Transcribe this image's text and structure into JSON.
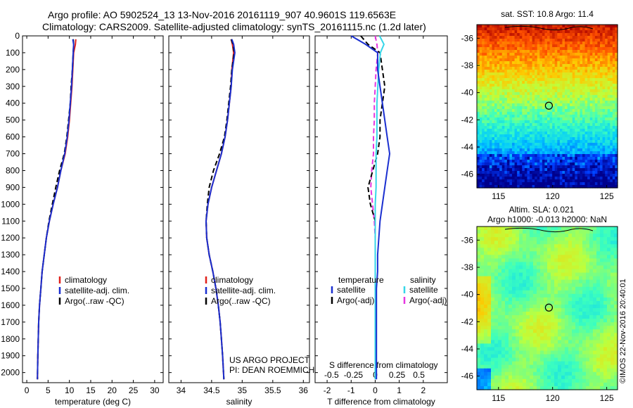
{
  "header": {
    "title_line1": "Argo profile: AO 5902524_13 13-Nov-2016 20161119_907 40.9601S 119.6563E",
    "title_line2": "Climatology: CARS2009. Satellite-adjusted climatology: synTS_20161115.nc (1.2d later)"
  },
  "footer": {
    "project": "US ARGO PROJECT",
    "pi": "PI: DEAN ROEMMICH",
    "imos_stamp": "©IMOS 22-Nov-2016 20:40:01"
  },
  "colors": {
    "climatology": "#e0201b",
    "satellite": "#1a2fd0",
    "argo": "#000000",
    "satellite_salinity": "#35d6e8",
    "argo_salinity_adj": "#e636e0"
  },
  "chart_data": [
    {
      "type": "line",
      "panel": "temperature",
      "xlabel": "temperature (deg C)",
      "xlim": [
        -1,
        32
      ],
      "ylim": [
        2060,
        0
      ],
      "xticks": [
        "0",
        "5",
        "10",
        "15",
        "20",
        "25",
        "30"
      ],
      "yticks": [
        "0",
        "100",
        "200",
        "300",
        "400",
        "500",
        "600",
        "700",
        "800",
        "900",
        "1000",
        "1100",
        "1200",
        "1300",
        "1400",
        "1500",
        "1600",
        "1700",
        "1800",
        "1900",
        "2000"
      ],
      "legend": [
        "climatology",
        "satellite-adj. clim.",
        "Argo(..raw -QC)"
      ],
      "series": [
        {
          "name": "climatology",
          "x": [
            11.5,
            11.4,
            11.0,
            10.8,
            10.6,
            10.3,
            10.0,
            9.6,
            9.0,
            8.0,
            7.2,
            6.2,
            5.3,
            4.6,
            4.1,
            3.6,
            3.3,
            3.0,
            2.8,
            2.7,
            2.6,
            2.5
          ],
          "y": [
            20,
            50,
            100,
            200,
            300,
            400,
            500,
            600,
            700,
            800,
            900,
            1000,
            1100,
            1200,
            1300,
            1400,
            1500,
            1600,
            1700,
            1800,
            1900,
            2040
          ]
        },
        {
          "name": "satellite-adj. clim.",
          "x": [
            10.8,
            11.0,
            10.9,
            10.7,
            10.5,
            10.2,
            9.9,
            9.5,
            8.9,
            8.0,
            7.2,
            6.2,
            5.3,
            4.6,
            4.1,
            3.6,
            3.3,
            3.0,
            2.8,
            2.7,
            2.6,
            2.5
          ],
          "y": [
            20,
            50,
            100,
            200,
            300,
            400,
            500,
            600,
            700,
            800,
            900,
            1000,
            1100,
            1200,
            1300,
            1400,
            1500,
            1600,
            1700,
            1800,
            1900,
            2040
          ]
        },
        {
          "name": "Argo(..raw -QC)",
          "x": [
            10.9,
            11.0,
            10.9,
            10.7,
            10.4,
            10.2,
            9.8,
            9.4,
            8.8,
            7.7,
            6.8,
            6.0,
            5.2,
            4.6,
            4.1,
            3.6,
            3.3,
            3.0,
            2.8,
            2.7,
            2.6,
            2.5
          ],
          "y": [
            20,
            50,
            100,
            200,
            300,
            400,
            500,
            600,
            700,
            800,
            900,
            1000,
            1100,
            1200,
            1300,
            1400,
            1500,
            1600,
            1700,
            1800,
            1900,
            2040
          ]
        }
      ]
    },
    {
      "type": "line",
      "panel": "salinity",
      "xlabel": "salinity",
      "xlim": [
        33.8,
        36.1
      ],
      "ylim": [
        2060,
        0
      ],
      "xticks": [
        "34",
        "34.5",
        "35",
        "35.5",
        "36"
      ],
      "legend": [
        "climatology",
        "satellite-adj. clim.",
        "Argo(..raw -QC)"
      ],
      "series": [
        {
          "name": "climatology",
          "x": [
            34.82,
            34.84,
            34.86,
            34.83,
            34.82,
            34.79,
            34.76,
            34.72,
            34.66,
            34.58,
            34.5,
            34.44,
            34.41,
            34.42,
            34.46,
            34.52,
            34.57,
            34.61,
            34.64,
            34.66,
            34.68,
            34.7
          ],
          "y": [
            20,
            50,
            100,
            200,
            300,
            400,
            500,
            600,
            700,
            800,
            900,
            1000,
            1100,
            1200,
            1300,
            1400,
            1500,
            1600,
            1700,
            1800,
            1900,
            2040
          ]
        },
        {
          "name": "satellite-adj. clim.",
          "x": [
            34.83,
            34.86,
            34.88,
            34.84,
            34.82,
            34.79,
            34.76,
            34.72,
            34.66,
            34.58,
            34.5,
            34.44,
            34.41,
            34.42,
            34.46,
            34.52,
            34.57,
            34.61,
            34.64,
            34.66,
            34.68,
            34.7
          ],
          "y": [
            20,
            50,
            100,
            200,
            300,
            400,
            500,
            600,
            700,
            800,
            900,
            1000,
            1100,
            1200,
            1300,
            1400,
            1500,
            1600,
            1700,
            1800,
            1900,
            2040
          ]
        },
        {
          "name": "Argo(..raw -QC)",
          "x": [
            34.82,
            34.85,
            34.87,
            34.83,
            34.81,
            34.78,
            34.75,
            34.71,
            34.63,
            34.53,
            34.46,
            34.43,
            34.41,
            34.42,
            34.46,
            34.52,
            34.57,
            34.61,
            34.64,
            34.66,
            34.68,
            34.7
          ],
          "y": [
            20,
            50,
            100,
            200,
            300,
            400,
            500,
            600,
            700,
            800,
            900,
            1000,
            1100,
            1200,
            1300,
            1400,
            1500,
            1600,
            1700,
            1800,
            1900,
            2040
          ]
        }
      ]
    },
    {
      "type": "line",
      "panel": "differences",
      "xlabel": "T difference from climatology",
      "xlabel_top": "S difference from climatology",
      "xlim": [
        -2.5,
        3.0
      ],
      "ylim": [
        2060,
        0
      ],
      "xticks": [
        "-2",
        "-1",
        "0",
        "1",
        "2"
      ],
      "xticks_salinity": [
        "-0.5",
        "-0.25",
        "0",
        "0.25",
        "0.5"
      ],
      "legend_temperature_header": "temperature",
      "legend_salinity_header": "salinity",
      "legend_temperature": [
        "satellite",
        "Argo(-adj)"
      ],
      "legend_salinity": [
        "satellite",
        "Argo(-adj)"
      ],
      "series": [
        {
          "name": "satellite",
          "group": "temperature",
          "x": [
            -1.0,
            -0.4,
            0.1,
            0.1,
            0.2,
            0.3,
            0.4,
            0.5,
            0.6,
            0.5,
            0.4,
            0.3,
            0.2,
            0.15,
            0.1,
            0.1,
            0.05,
            0.05,
            0.05,
            0.05,
            0.05
          ],
          "y": [
            0,
            50,
            100,
            200,
            300,
            400,
            500,
            600,
            700,
            800,
            900,
            1000,
            1100,
            1200,
            1300,
            1400,
            1500,
            1600,
            1700,
            1800,
            2040
          ]
        },
        {
          "name": "Argo(-adj)",
          "group": "temperature",
          "x": [
            -0.6,
            -0.3,
            0.2,
            0.3,
            0.4,
            0.3,
            0.2,
            0.2,
            0.1,
            -0.1,
            -0.3,
            -0.2,
            0.0,
            0.0,
            0.0,
            0.0,
            0.0,
            0.0,
            0.0,
            0.0,
            0.0
          ],
          "y": [
            0,
            50,
            100,
            200,
            300,
            400,
            500,
            600,
            700,
            800,
            900,
            1000,
            1100,
            1200,
            1300,
            1400,
            1500,
            1600,
            1700,
            1800,
            2040
          ]
        },
        {
          "name": "satellite",
          "group": "salinity",
          "x": [
            0.05,
            0.1,
            0.06,
            0.04,
            0.03,
            0.02,
            0.02,
            0.02,
            0.01,
            0.01,
            0.01,
            0.0,
            0.0,
            0.0,
            0.0,
            0.0,
            0.0,
            0.0,
            0.0,
            0.0,
            0.0
          ],
          "y": [
            0,
            50,
            100,
            200,
            300,
            400,
            500,
            600,
            700,
            800,
            900,
            1000,
            1100,
            1200,
            1300,
            1400,
            1500,
            1600,
            1700,
            1800,
            2040
          ]
        },
        {
          "name": "Argo(-adj)",
          "group": "salinity",
          "x": [
            0.0,
            0.02,
            0.03,
            0.01,
            0.0,
            -0.01,
            -0.01,
            -0.02,
            -0.02,
            -0.04,
            -0.05,
            -0.03,
            -0.01,
            0.0,
            0.0,
            0.0,
            0.0,
            0.0,
            0.0,
            0.0,
            0.0
          ],
          "y": [
            0,
            50,
            100,
            200,
            300,
            400,
            500,
            600,
            700,
            800,
            900,
            1000,
            1100,
            1200,
            1300,
            1400,
            1500,
            1600,
            1700,
            1800,
            2040
          ]
        }
      ]
    },
    {
      "type": "heatmap",
      "panel": "sst_map",
      "title": "sat. SST: 10.8 Argo: 11.4",
      "xlim": [
        113,
        126
      ],
      "ylim": [
        -47,
        -35
      ],
      "xticks": [
        "115",
        "120",
        "125"
      ],
      "yticks": [
        "-36",
        "-38",
        "-40",
        "-42",
        "-44",
        "-46"
      ],
      "argo_position": {
        "lon": 119.6563,
        "lat": -40.9601
      }
    },
    {
      "type": "heatmap",
      "panel": "sla_map",
      "title_line1": "Altim. SLA: 0.021",
      "title_line2": "Argo h1000: -0.013 h2000: NaN",
      "xlim": [
        113,
        126
      ],
      "ylim": [
        -47,
        -35
      ],
      "xticks": [
        "115",
        "120",
        "125"
      ],
      "yticks": [
        "-36",
        "-38",
        "-40",
        "-42",
        "-44",
        "-46"
      ],
      "argo_position": {
        "lon": 119.6563,
        "lat": -40.9601
      }
    }
  ]
}
